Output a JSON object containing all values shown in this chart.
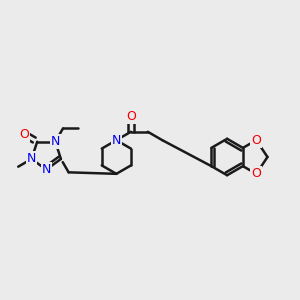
{
  "background_color": "#ebebeb",
  "bond_color": "#1a1a1a",
  "bond_width": 1.8,
  "atom_colors": {
    "N": "#0000ee",
    "O": "#ee0000",
    "C": "#1a1a1a"
  },
  "figsize": [
    3.0,
    3.0
  ],
  "dpi": 100
}
